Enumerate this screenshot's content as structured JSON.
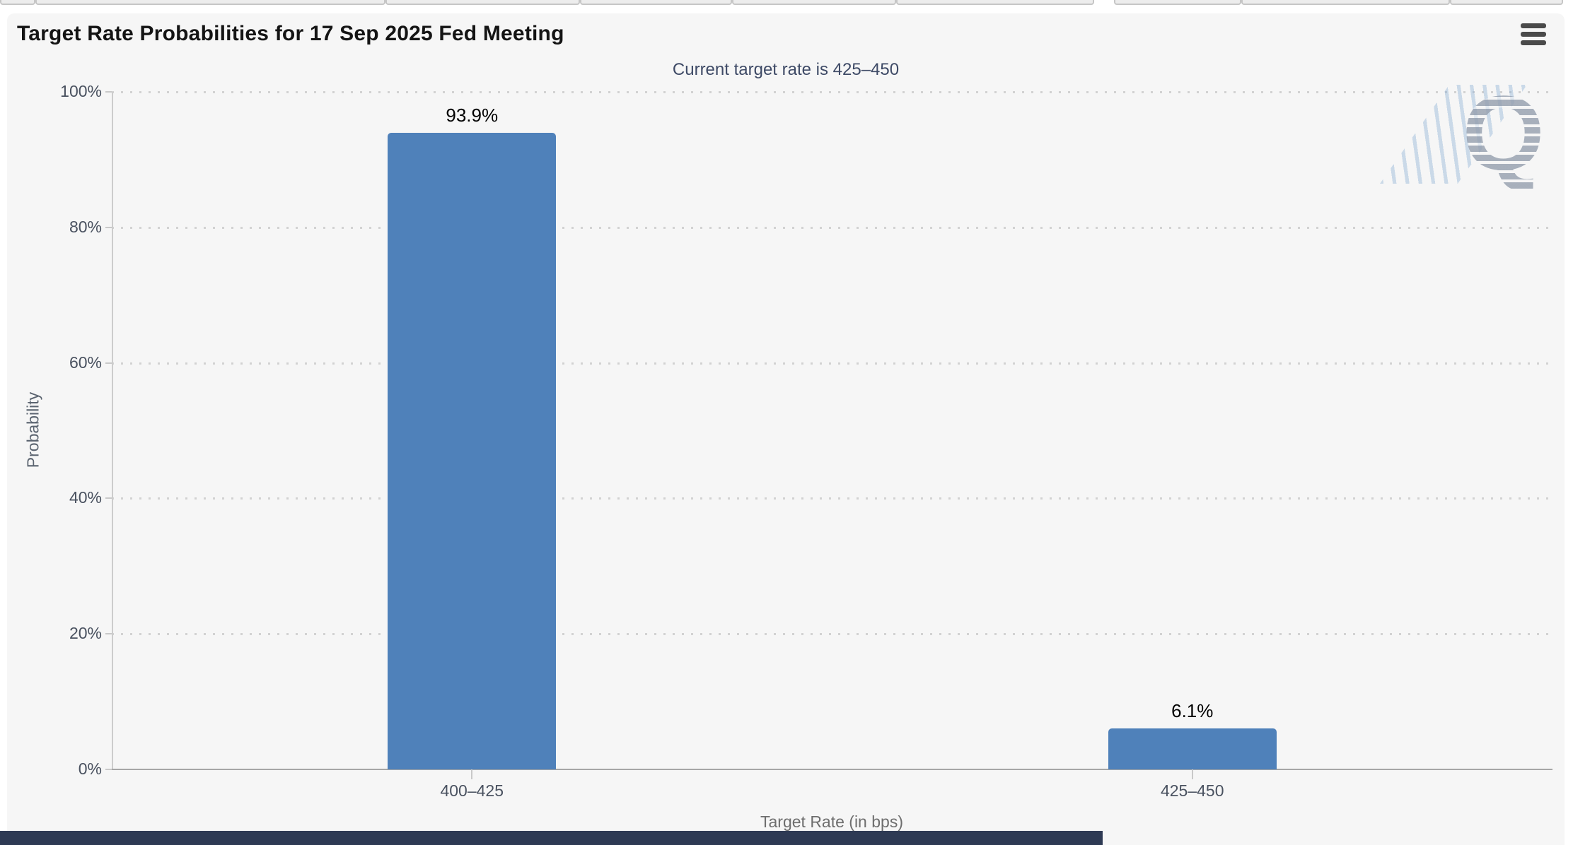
{
  "page": {
    "background": "#ffffff",
    "panel_background": "#f6f6f6"
  },
  "header": {
    "menu_icon": "hamburger-icon"
  },
  "chart_data": {
    "type": "bar",
    "title": "Target Rate Probabilities for 17 Sep 2025 Fed Meeting",
    "subtitle": "Current target rate is 425–450",
    "categories": [
      "400–425",
      "425–450"
    ],
    "values": [
      93.9,
      6.1
    ],
    "bar_labels": [
      "93.9%",
      "6.1%"
    ],
    "xlabel": "Target Rate (in bps)",
    "ylabel": "Probability",
    "ylim": [
      0,
      100
    ],
    "ytick_step": 20,
    "ytick_labels": [
      "0%",
      "20%",
      "40%",
      "60%",
      "80%",
      "100%"
    ],
    "legend": "none",
    "grid": "horizontal-dotted",
    "colors": {
      "bar": "#4f81ba",
      "title_text": "#141414",
      "subtitle_text": "#3e4a66",
      "axis_label_text": "#49515f",
      "axis_title_text": "#6e6e6e",
      "grid_line": "#d2d2d2",
      "axis_line": "#a6a6a6"
    }
  },
  "watermark": {
    "letter": "Q"
  },
  "scrollbar": {
    "color": "#2e3a54"
  },
  "tab_strip": {
    "segments": [
      [
        0,
        50
      ],
      [
        50,
        545
      ],
      [
        545,
        820
      ],
      [
        820,
        1035
      ],
      [
        1035,
        1267
      ],
      [
        1267,
        1547
      ],
      [
        1575,
        1755
      ],
      [
        1755,
        2050
      ],
      [
        2050,
        2210
      ]
    ]
  }
}
